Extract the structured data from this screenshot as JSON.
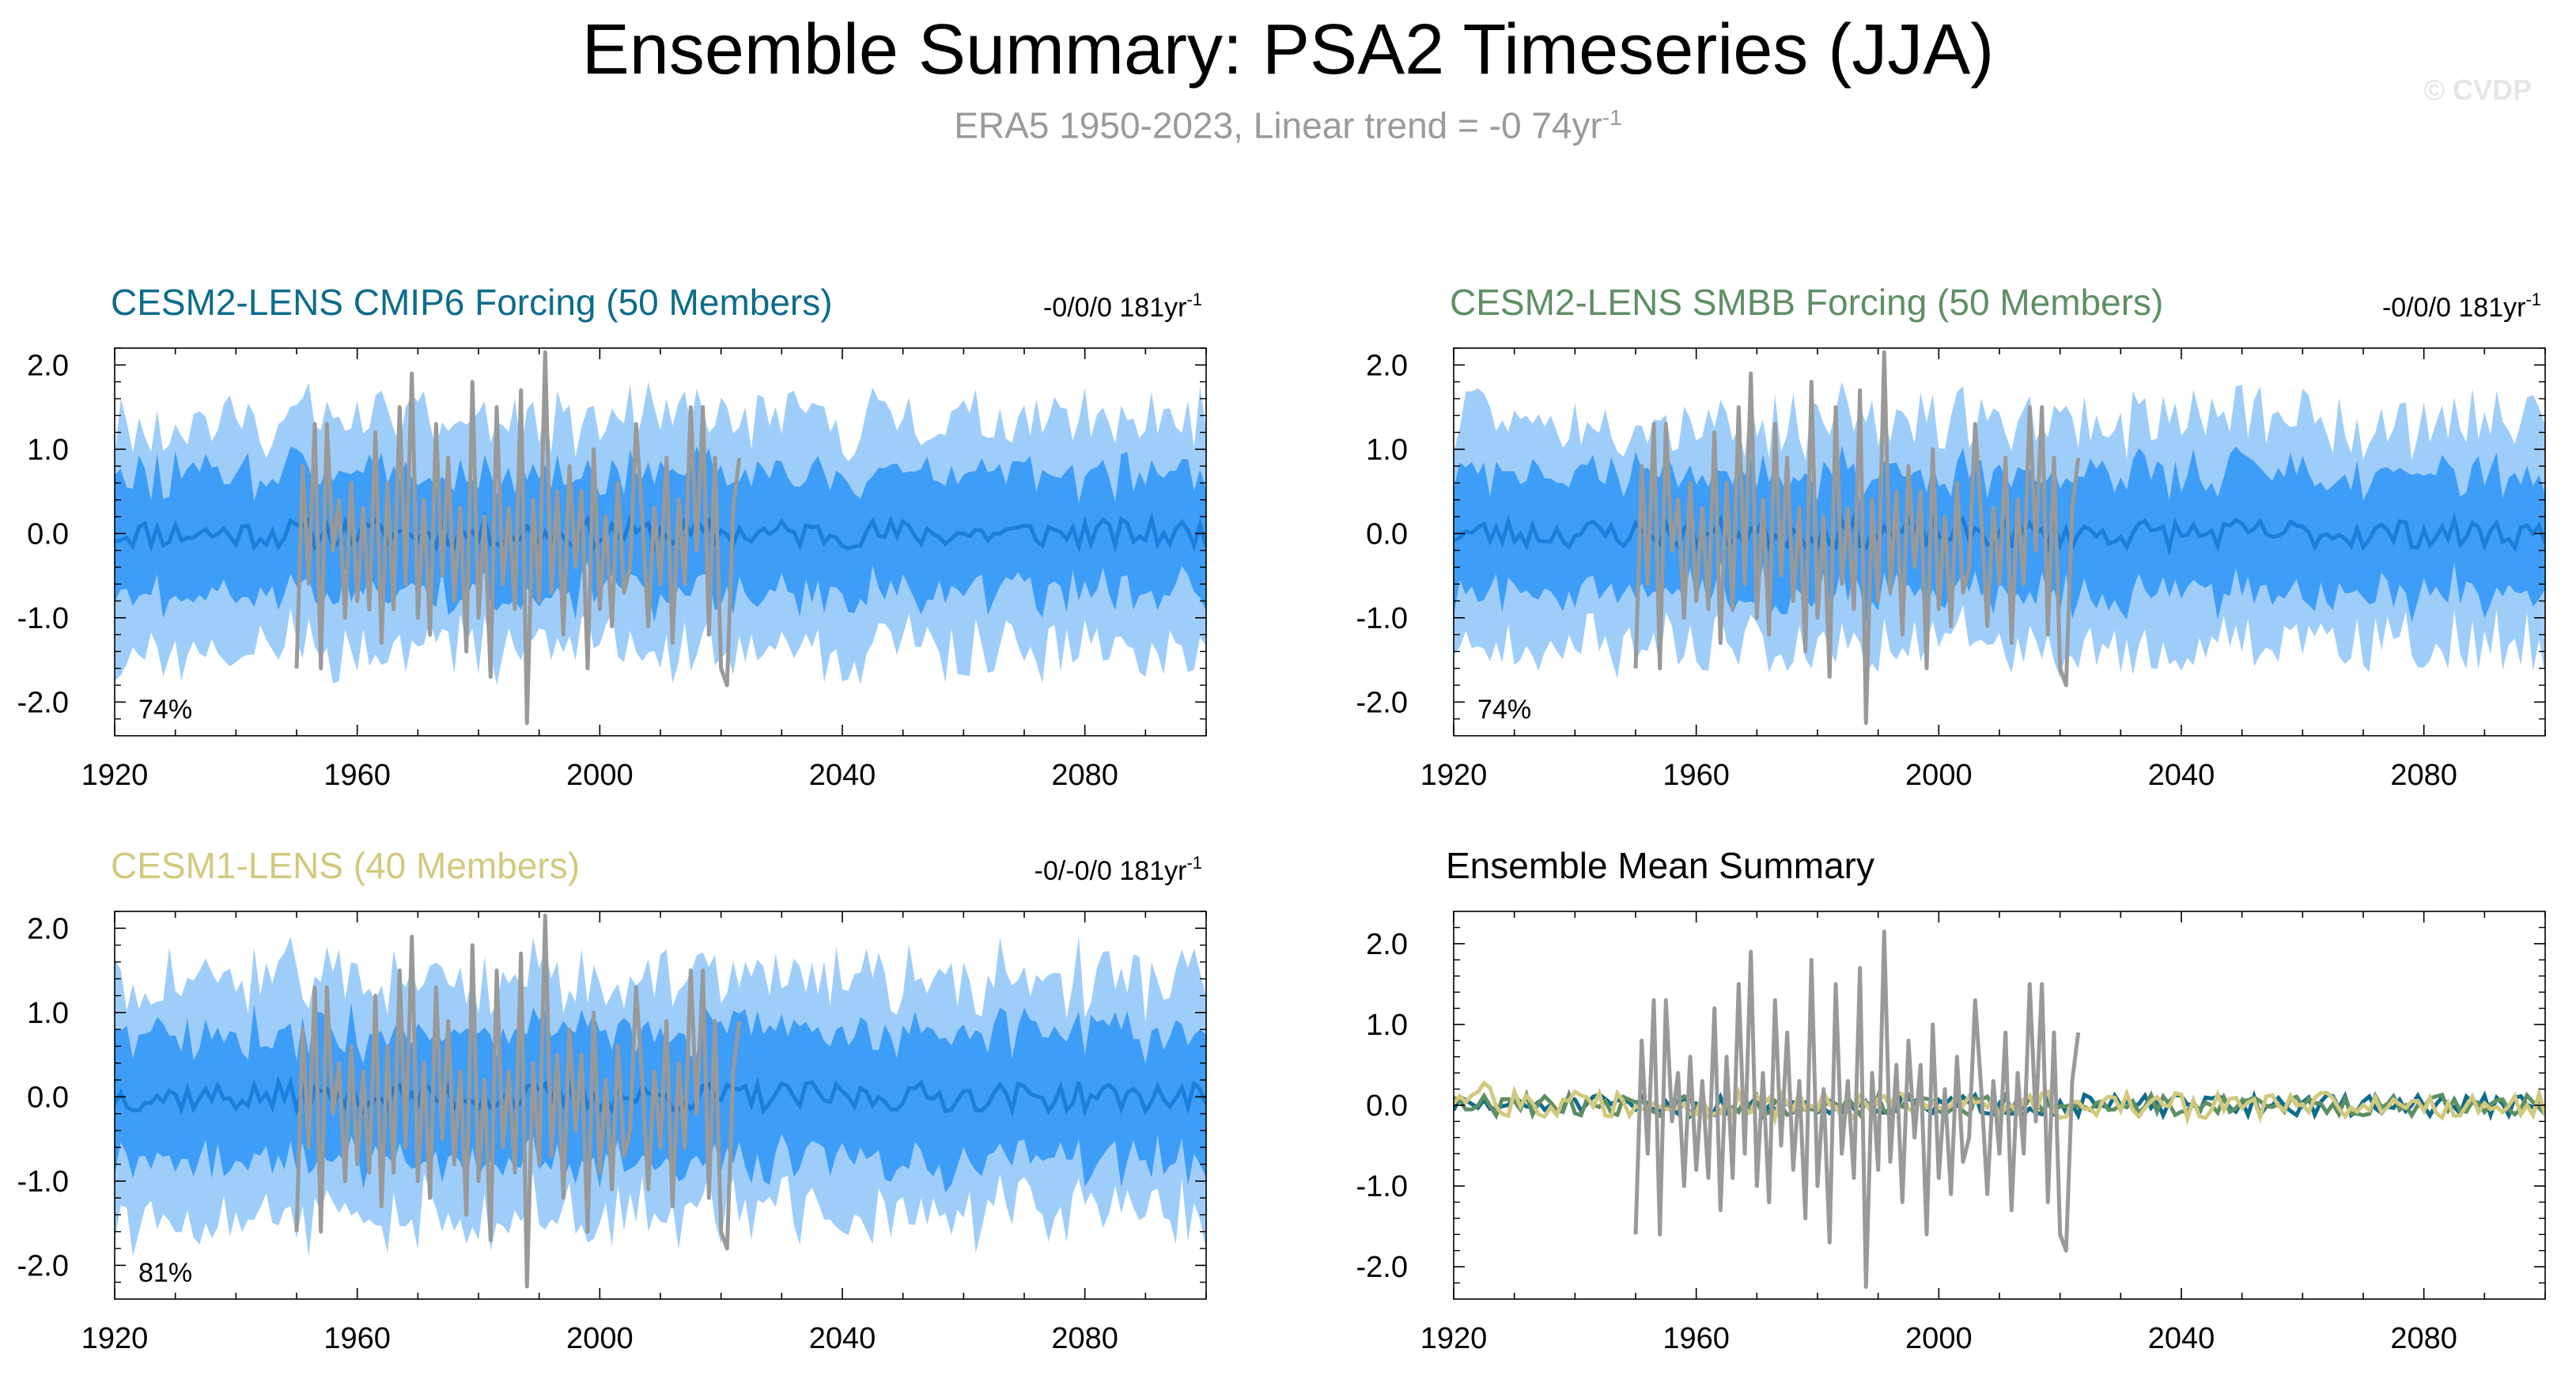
{
  "page": {
    "title": "Ensemble Summary: PSA2 Timeseries (JJA)",
    "subtitle_main": "ERA5 1950-2023, Linear trend = -0 74yr",
    "subtitle_sup": "-1",
    "watermark": "© CVDP"
  },
  "colors": {
    "band_outer": "#9fcdfa",
    "band_inner": "#3e9df7",
    "ens_mean": "#1a7fdd",
    "obs": "#999999",
    "cmip6": "#0d6c8c",
    "smbb": "#5e8f64",
    "cesm1": "#d2c97f",
    "axis": "#000000"
  },
  "chart_data": [
    {
      "type": "area",
      "title": "CESM2-LENS CMIP6 Forcing (50 Members)",
      "title_color": "#0d6c8c",
      "trend_label": "-0/0/0 181yr",
      "trend_sup": "-1",
      "percent_label": "74%",
      "xlim": [
        1920,
        2100
      ],
      "ylim": [
        -2.4,
        2.2
      ],
      "xticks": [
        1920,
        1960,
        2000,
        2040,
        2080
      ],
      "yticks": [
        2.0,
        1.0,
        0.0,
        -1.0,
        -2.0
      ],
      "ytick_labels": [
        "2.0",
        "1.0",
        "0.0",
        "-1.0",
        "-2.0"
      ],
      "grid": false,
      "series": [
        {
          "name": "ERA5",
          "role": "obs"
        }
      ],
      "bands": {
        "outer_halfwidth": 1.35,
        "inner_halfwidth": 0.72
      },
      "seed": 11
    },
    {
      "type": "area",
      "title": "CESM2-LENS SMBB Forcing (50 Members)",
      "title_color": "#5e8f64",
      "trend_label": "-0/0/0 181yr",
      "trend_sup": "-1",
      "percent_label": "74%",
      "xlim": [
        1920,
        2100
      ],
      "ylim": [
        -2.4,
        2.2
      ],
      "xticks": [
        1920,
        1960,
        2000,
        2040,
        2080
      ],
      "yticks": [
        2.0,
        1.0,
        0.0,
        -1.0,
        -2.0
      ],
      "ytick_labels": [
        "2.0",
        "1.0",
        "0.0",
        "-1.0",
        "-2.0"
      ],
      "grid": false,
      "bands": {
        "outer_halfwidth": 1.35,
        "inner_halfwidth": 0.72
      },
      "seed": 23
    },
    {
      "type": "area",
      "title": "CESM1-LENS (40 Members)",
      "title_color": "#d2c97f",
      "trend_label": "-0/-0/0 181yr",
      "trend_sup": "-1",
      "percent_label": "81%",
      "xlim": [
        1920,
        2100
      ],
      "ylim": [
        -2.4,
        2.2
      ],
      "xticks": [
        1920,
        1960,
        2000,
        2040,
        2080
      ],
      "yticks": [
        2.0,
        1.0,
        0.0,
        -1.0,
        -2.0
      ],
      "ytick_labels": [
        "2.0",
        "1.0",
        "0.0",
        "-1.0",
        "-2.0"
      ],
      "grid": false,
      "bands": {
        "outer_halfwidth": 1.4,
        "inner_halfwidth": 0.78
      },
      "seed": 37
    },
    {
      "type": "line",
      "title": "Ensemble Mean Summary",
      "title_color": "#000000",
      "xlim": [
        1920,
        2100
      ],
      "ylim": [
        -2.4,
        2.4
      ],
      "xticks": [
        1920,
        1960,
        2000,
        2040,
        2080
      ],
      "yticks": [
        2.0,
        1.0,
        0.0,
        -1.0,
        -2.0
      ],
      "ytick_labels": [
        "2.0",
        "1.0",
        "0.0",
        "-1.0",
        "-2.0"
      ],
      "grid": false,
      "seed": 51
    }
  ],
  "obs_series": {
    "name": "ERA5",
    "x_start": 1950,
    "values": [
      -1.6,
      0.8,
      -0.6,
      1.3,
      -1.6,
      1.3,
      -0.2,
      0.4,
      -1.0,
      0.6,
      -0.8,
      0.3,
      -0.9,
      1.2,
      -1.3,
      0.6,
      -0.9,
      1.5,
      -0.6,
      1.9,
      -1.0,
      0.4,
      -1.2,
      1.3,
      -0.5,
      0.9,
      -0.8,
      0.3,
      -1.4,
      1.8,
      -1.0,
      0.2,
      -1.7,
      1.5,
      -0.6,
      0.3,
      -0.9,
      1.7,
      -2.25,
      0.4,
      -0.8,
      2.15,
      -0.7,
      0.5,
      -1.2,
      0.8,
      -0.4,
      0.5,
      -1.6,
      1.0,
      -0.9,
      0.2,
      -1.1,
      0.6,
      -0.7,
      -0.4,
      1.3,
      0.2,
      -1.1,
      0.3,
      -0.6,
      0.9,
      -1.3,
      0.4,
      -0.6,
      1.5,
      -0.2,
      1.5,
      -1.2,
      0.9,
      -1.6,
      -1.8,
      0.3,
      0.9
    ]
  }
}
